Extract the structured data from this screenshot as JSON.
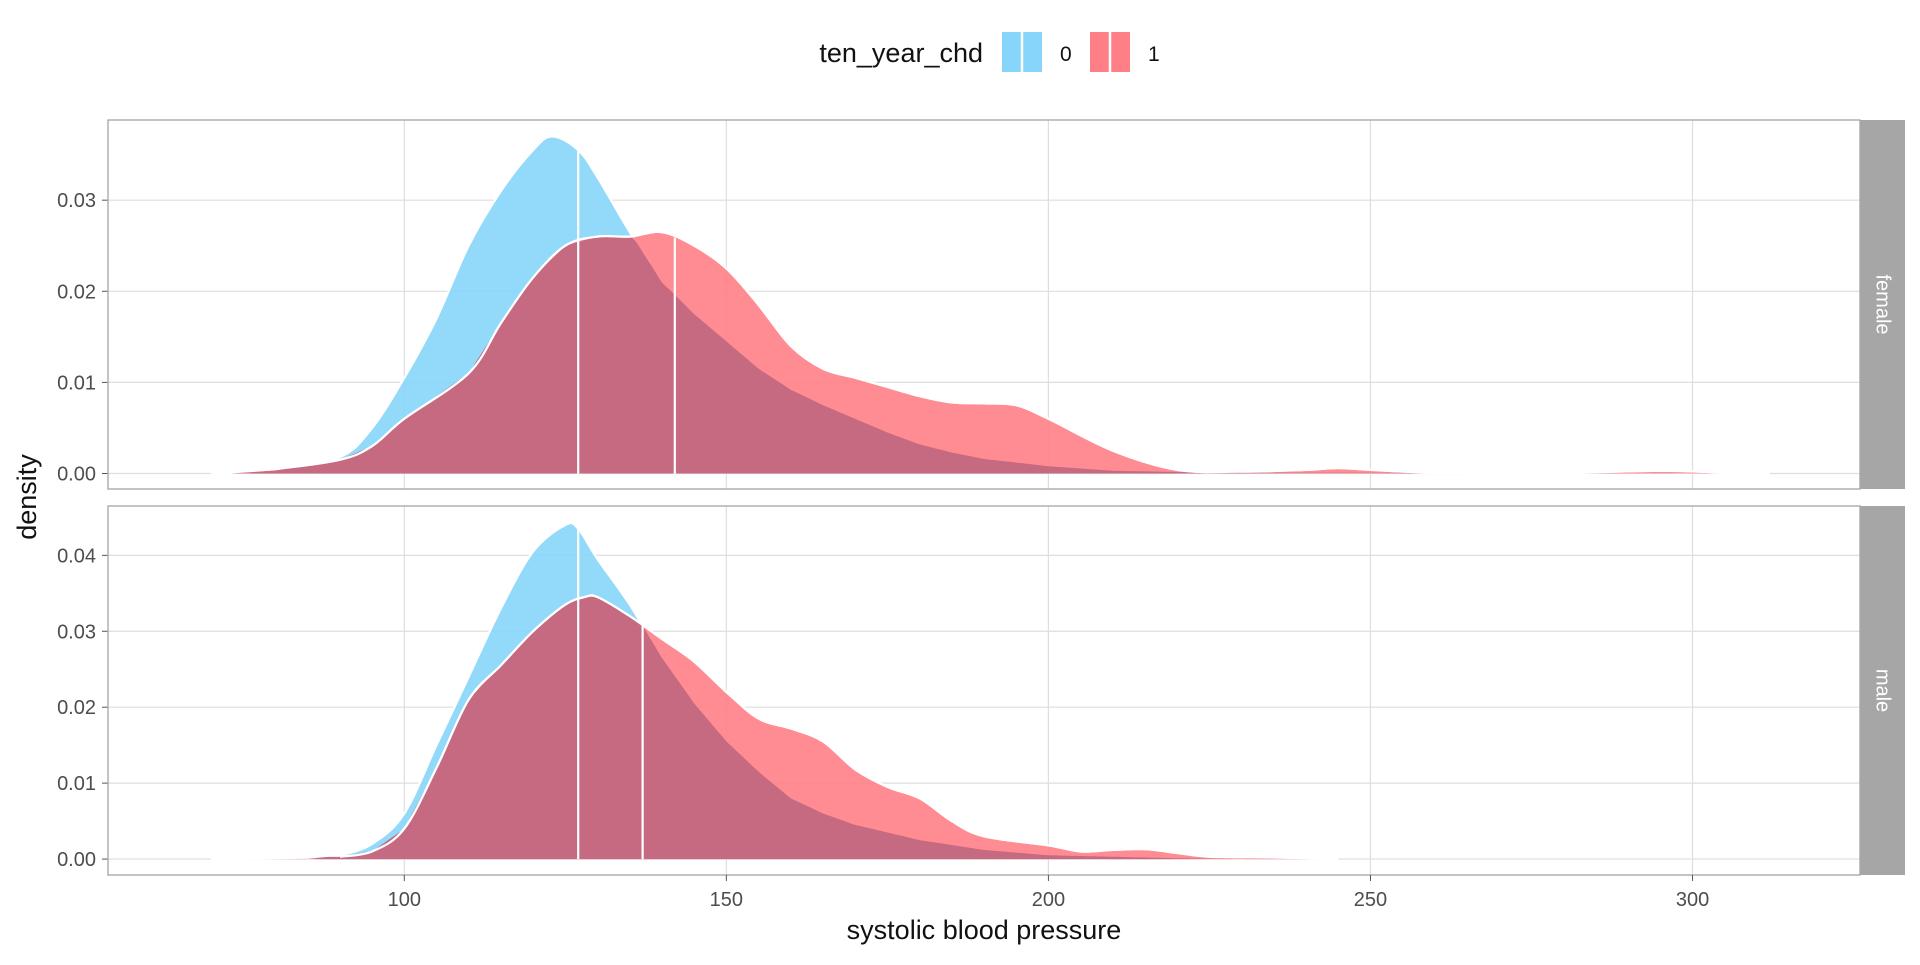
{
  "chart_data": {
    "type": "area",
    "title": "",
    "xlabel": "systolic blood pressure",
    "ylabel": "density",
    "xlim": [
      54,
      326
    ],
    "xticks": [
      100,
      150,
      200,
      250,
      300
    ],
    "xtick_labels": [
      "100",
      "150",
      "200",
      "250",
      "300"
    ],
    "grid": true,
    "legend": {
      "title": "ten_year_chd",
      "position": "top",
      "entries": [
        {
          "label": "0",
          "color": "#87D5FA"
        },
        {
          "label": "1",
          "color": "#FF7F86"
        }
      ]
    },
    "colors": {
      "group0": "#87D5FA",
      "group1": "#FF7F86",
      "overlap": "#C56A80"
    },
    "facets": [
      {
        "label": "female",
        "ylim": [
          -0.0017,
          0.0388
        ],
        "yticks": [
          0,
          0.01,
          0.02,
          0.03
        ],
        "ytick_labels": [
          "0.00",
          "0.01",
          "0.02",
          "0.03"
        ],
        "series": [
          {
            "name": "0",
            "median": 127,
            "points": [
              [
                70,
                0
              ],
              [
                80,
                0.0003
              ],
              [
                90,
                0.0018
              ],
              [
                95,
                0.005
              ],
              [
                100,
                0.0105
              ],
              [
                105,
                0.017
              ],
              [
                110,
                0.025
              ],
              [
                115,
                0.031
              ],
              [
                120,
                0.0355
              ],
              [
                123,
                0.037
              ],
              [
                127,
                0.0355
              ],
              [
                130,
                0.0325
              ],
              [
                135,
                0.0265
              ],
              [
                140,
                0.021
              ],
              [
                145,
                0.0175
              ],
              [
                150,
                0.0145
              ],
              [
                155,
                0.0115
              ],
              [
                160,
                0.0092
              ],
              [
                165,
                0.0075
              ],
              [
                170,
                0.006
              ],
              [
                175,
                0.0045
              ],
              [
                180,
                0.0032
              ],
              [
                185,
                0.0023
              ],
              [
                190,
                0.0016
              ],
              [
                200,
                0.0008
              ],
              [
                210,
                0.0003
              ],
              [
                225,
                0.0001
              ],
              [
                312,
                0
              ]
            ]
          },
          {
            "name": "1",
            "median": 142,
            "points": [
              [
                70,
                0
              ],
              [
                80,
                0.0005
              ],
              [
                90,
                0.0015
              ],
              [
                95,
                0.003
              ],
              [
                100,
                0.006
              ],
              [
                110,
                0.011
              ],
              [
                115,
                0.0165
              ],
              [
                120,
                0.0215
              ],
              [
                125,
                0.025
              ],
              [
                130,
                0.026
              ],
              [
                135,
                0.026
              ],
              [
                140,
                0.0265
              ],
              [
                145,
                0.025
              ],
              [
                150,
                0.0225
              ],
              [
                155,
                0.0185
              ],
              [
                160,
                0.014
              ],
              [
                165,
                0.0115
              ],
              [
                170,
                0.0105
              ],
              [
                175,
                0.0095
              ],
              [
                180,
                0.0085
              ],
              [
                185,
                0.0078
              ],
              [
                190,
                0.0077
              ],
              [
                195,
                0.0075
              ],
              [
                200,
                0.006
              ],
              [
                210,
                0.0025
              ],
              [
                220,
                0.0004
              ],
              [
                230,
                0.0002
              ],
              [
                240,
                0.0004
              ],
              [
                245,
                0.0006
              ],
              [
                250,
                0.0004
              ],
              [
                260,
                0.0001
              ],
              [
                280,
                0.0001
              ],
              [
                295,
                0.0003
              ],
              [
                305,
                0.0001
              ],
              [
                312,
                0
              ]
            ]
          }
        ]
      },
      {
        "label": "male",
        "ylim": [
          -0.0021,
          0.0465
        ],
        "yticks": [
          0,
          0.01,
          0.02,
          0.03,
          0.04
        ],
        "ytick_labels": [
          "0.00",
          "0.01",
          "0.02",
          "0.03",
          "0.04"
        ],
        "series": [
          {
            "name": "0",
            "median": 127,
            "points": [
              [
                85,
                0
              ],
              [
                90,
                0.0005
              ],
              [
                95,
                0.002
              ],
              [
                100,
                0.006
              ],
              [
                105,
                0.015
              ],
              [
                110,
                0.024
              ],
              [
                115,
                0.033
              ],
              [
                120,
                0.0405
              ],
              [
                125,
                0.044
              ],
              [
                127,
                0.0435
              ],
              [
                130,
                0.0395
              ],
              [
                135,
                0.0335
              ],
              [
                140,
                0.0265
              ],
              [
                145,
                0.0205
              ],
              [
                150,
                0.0155
              ],
              [
                155,
                0.0115
              ],
              [
                160,
                0.008
              ],
              [
                165,
                0.006
              ],
              [
                170,
                0.0045
              ],
              [
                175,
                0.0035
              ],
              [
                180,
                0.0025
              ],
              [
                190,
                0.0012
              ],
              [
                200,
                0.0005
              ],
              [
                220,
                0.0001
              ],
              [
                230,
                0
              ]
            ]
          },
          {
            "name": "1",
            "median": 137,
            "points": [
              [
                70,
                0
              ],
              [
                90,
                0.0003
              ],
              [
                95,
                0.001
              ],
              [
                100,
                0.004
              ],
              [
                105,
                0.012
              ],
              [
                110,
                0.021
              ],
              [
                115,
                0.0255
              ],
              [
                120,
                0.03
              ],
              [
                125,
                0.0335
              ],
              [
                128,
                0.0345
              ],
              [
                130,
                0.0345
              ],
              [
                135,
                0.032
              ],
              [
                140,
                0.029
              ],
              [
                145,
                0.026
              ],
              [
                150,
                0.022
              ],
              [
                155,
                0.0185
              ],
              [
                160,
                0.0172
              ],
              [
                165,
                0.0155
              ],
              [
                170,
                0.0118
              ],
              [
                175,
                0.0095
              ],
              [
                180,
                0.008
              ],
              [
                185,
                0.005
              ],
              [
                190,
                0.003
              ],
              [
                200,
                0.0018
              ],
              [
                205,
                0.001
              ],
              [
                210,
                0.0012
              ],
              [
                215,
                0.0013
              ],
              [
                220,
                0.0008
              ],
              [
                225,
                0.0003
              ],
              [
                235,
                0.0002
              ],
              [
                245,
                0
              ]
            ]
          }
        ]
      }
    ]
  }
}
